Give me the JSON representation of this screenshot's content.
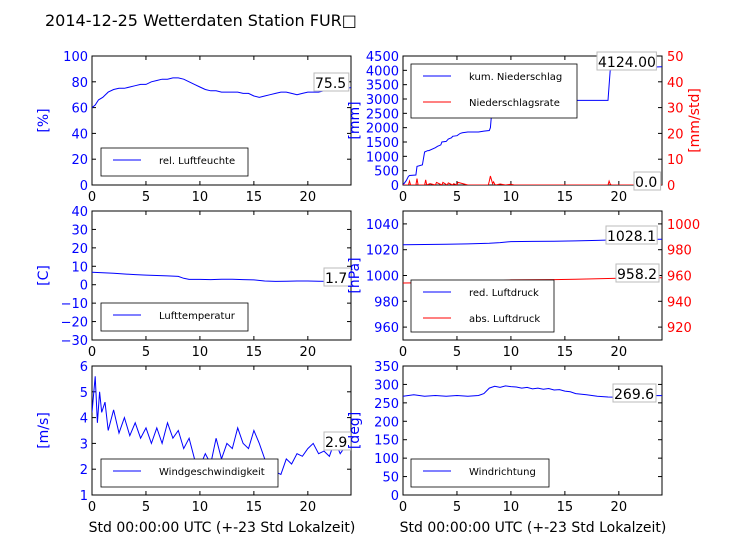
{
  "figure": {
    "title": "2014-12-25 Wetterdaten Station FUR□",
    "x_label": "Std 00:00:00 UTC (+-23 Std Lokalzeit)"
  },
  "colors": {
    "left_axis": "#0000ff",
    "right_axis": "#ff0000",
    "black": "#000000"
  },
  "chart_data": [
    {
      "type": "line",
      "ylabel": "[%]",
      "xlim": [
        0,
        24
      ],
      "ylim": [
        0,
        100
      ],
      "yticks": [
        "0",
        "20",
        "40",
        "60",
        "80",
        "100"
      ],
      "xticks": [
        "0",
        "5",
        "10",
        "15",
        "20"
      ],
      "series": [
        {
          "name": "rel. Luftfeuchte",
          "color": "#0000ff",
          "x": [
            0,
            0.3,
            0.6,
            1,
            1.5,
            2,
            2.5,
            3,
            3.5,
            4,
            4.5,
            5,
            5.5,
            6,
            6.5,
            7,
            7.5,
            8,
            8.5,
            9,
            9.5,
            10,
            10.5,
            11,
            11.5,
            12,
            12.5,
            13,
            13.5,
            14,
            14.5,
            15,
            15.5,
            16,
            16.5,
            17,
            17.5,
            18,
            18.5,
            19,
            19.5,
            20,
            20.5,
            21,
            21.5,
            22,
            22.5,
            23,
            23.5,
            24
          ],
          "y": [
            60,
            62,
            66,
            68,
            72,
            74,
            75,
            75,
            76,
            77,
            78,
            78,
            80,
            81,
            82,
            82,
            83,
            83,
            82,
            80,
            78,
            76,
            74,
            73,
            73,
            72,
            72,
            72,
            72,
            71,
            71,
            69,
            68,
            69,
            70,
            71,
            72,
            72,
            71,
            70,
            71,
            72,
            72,
            72,
            73,
            73,
            74,
            75,
            75,
            75.5
          ]
        }
      ],
      "last_value_label": "75.5"
    },
    {
      "type": "line",
      "ylabel": "[mm]",
      "ylabel_right": "[mm/std]",
      "xlim": [
        0,
        24
      ],
      "ylim": [
        0,
        4500
      ],
      "ylim_right": [
        0,
        50
      ],
      "yticks": [
        "0",
        "500",
        "1000",
        "1500",
        "2000",
        "2500",
        "3000",
        "3500",
        "4000",
        "4500"
      ],
      "yticks_right": [
        "0",
        "10",
        "20",
        "30",
        "40",
        "50"
      ],
      "xticks": [
        "0",
        "5",
        "10",
        "15",
        "20"
      ],
      "series": [
        {
          "name": "kum. Niederschlag",
          "color": "#0000ff",
          "x": [
            0,
            0.3,
            0.5,
            0.6,
            1.2,
            1.3,
            1.8,
            2.0,
            2.3,
            2.4,
            3.0,
            3.2,
            3.5,
            3.6,
            4.0,
            4.2,
            4.5,
            4.6,
            5.0,
            5.3,
            5.5,
            6.0,
            6.5,
            7.0,
            7.5,
            8.0,
            8.1,
            8.3,
            8.5,
            8.7,
            9.0,
            12,
            15,
            17,
            19,
            19.2,
            20,
            22,
            24
          ],
          "y": [
            0,
            150,
            300,
            330,
            350,
            650,
            700,
            1150,
            1200,
            1200,
            1300,
            1350,
            1400,
            1500,
            1520,
            1600,
            1650,
            1700,
            1720,
            1800,
            1820,
            1850,
            1850,
            1850,
            1880,
            1900,
            2000,
            2900,
            2950,
            2950,
            2950,
            2950,
            2950,
            2950,
            2950,
            4000,
            4050,
            4100,
            4124
          ]
        },
        {
          "name": "Niederschlagsrate",
          "color": "#ff0000",
          "axis": "right",
          "x": [
            0,
            0.5,
            0.6,
            0.7,
            1.2,
            1.3,
            1.4,
            2.0,
            2.1,
            2.2,
            2.5,
            3.0,
            3.1,
            3.6,
            3.7,
            4.1,
            4.2,
            4.6,
            4.7,
            5.0,
            5.1,
            6.0,
            7.9,
            8.0,
            8.1,
            8.2,
            8.3,
            8.4,
            8.5,
            8.6,
            9.0,
            9.5,
            10,
            10.3,
            12,
            15,
            19.0,
            19.1,
            19.2,
            19.3,
            24
          ],
          "y": [
            0,
            0,
            1.5,
            0,
            0,
            2.5,
            0,
            0,
            2,
            0,
            0.5,
            0,
            1,
            0,
            1,
            0,
            0.8,
            0,
            0.5,
            0,
            1,
            0,
            0,
            1.5,
            3.5,
            2,
            0.5,
            1.2,
            0.3,
            0,
            0.4,
            0,
            0.3,
            0,
            0,
            0,
            0,
            1.5,
            0.4,
            0,
            0
          ]
        }
      ],
      "last_value_label": "4124.00",
      "last_value_label_right": "0.0"
    },
    {
      "type": "line",
      "ylabel": "[C]",
      "xlim": [
        0,
        24
      ],
      "ylim": [
        -30,
        40
      ],
      "yticks": [
        "−30",
        "−20",
        "−10",
        "0",
        "10",
        "20",
        "30",
        "40"
      ],
      "xticks": [
        "0",
        "5",
        "10",
        "15",
        "20"
      ],
      "series": [
        {
          "name": "Lufttemperatur",
          "color": "#0000ff",
          "x": [
            0,
            1,
            2,
            3,
            4,
            5,
            6,
            7,
            8,
            8.5,
            9,
            10,
            11,
            12,
            13,
            14,
            15,
            16,
            17,
            18,
            19,
            20,
            21,
            22,
            23,
            24
          ],
          "y": [
            6.8,
            6.5,
            6.2,
            5.8,
            5.5,
            5.2,
            5.0,
            4.8,
            4.5,
            3.5,
            2.9,
            2.9,
            2.8,
            3.0,
            3.0,
            2.8,
            2.6,
            2.0,
            1.8,
            1.9,
            2.0,
            2.0,
            1.9,
            1.8,
            1.7,
            1.7
          ]
        }
      ],
      "last_value_label": "1.7"
    },
    {
      "type": "line",
      "ylabel": "[hPa]",
      "xlim": [
        0,
        24
      ],
      "ylim": [
        950,
        1050
      ],
      "ylim_right": [
        910,
        1010
      ],
      "yticks": [
        "960",
        "980",
        "1000",
        "1020",
        "1040"
      ],
      "yticks_right": [
        "920",
        "940",
        "960",
        "980",
        "1000"
      ],
      "xticks": [
        "0",
        "5",
        "10",
        "15",
        "20"
      ],
      "series": [
        {
          "name": "red. Luftdruck",
          "color": "#0000ff",
          "x": [
            0,
            2,
            4,
            6,
            8,
            9,
            10,
            12,
            14,
            16,
            18,
            20,
            22,
            24
          ],
          "y": [
            1023.8,
            1024,
            1024.2,
            1024.5,
            1025,
            1025.5,
            1026.3,
            1026.4,
            1026.5,
            1026.8,
            1027.2,
            1027.7,
            1028.0,
            1028.1
          ]
        },
        {
          "name": "abs. Luftdruck",
          "color": "#ff0000",
          "axis": "right",
          "x": [
            0,
            2,
            4,
            6,
            8,
            9,
            10,
            12,
            14,
            16,
            18,
            20,
            22,
            24
          ],
          "y": [
            954.2,
            954.4,
            954.6,
            955,
            955.5,
            956,
            956.6,
            956.7,
            956.8,
            957.1,
            957.5,
            957.9,
            958.1,
            958.2
          ]
        }
      ],
      "last_value_label": "1028.1",
      "last_value_label_right": "958.2"
    },
    {
      "type": "line",
      "ylabel": "[m/s]",
      "xlim": [
        0,
        24
      ],
      "ylim": [
        1,
        6
      ],
      "yticks": [
        "1",
        "2",
        "3",
        "4",
        "5",
        "6"
      ],
      "xticks": [
        "0",
        "5",
        "10",
        "15",
        "20"
      ],
      "series": [
        {
          "name": "Windgeschwindigkeit",
          "color": "#0000ff",
          "x": [
            0,
            0.3,
            0.5,
            0.7,
            0.9,
            1.2,
            1.5,
            2,
            2.5,
            3,
            3.5,
            4,
            4.5,
            5,
            5.5,
            6,
            6.5,
            7,
            7.5,
            8,
            8.5,
            9,
            9.5,
            10,
            10.5,
            11,
            11.5,
            12,
            12.5,
            13,
            13.5,
            14,
            14.5,
            15,
            15.5,
            16,
            16.5,
            17,
            17.5,
            18,
            18.5,
            19,
            19.5,
            20,
            20.5,
            21,
            21.5,
            22,
            22.5,
            23,
            23.5,
            24
          ],
          "y": [
            4.2,
            5.6,
            3.8,
            5.0,
            4.2,
            4.6,
            3.5,
            4.3,
            3.4,
            4.0,
            3.3,
            3.8,
            3.2,
            3.6,
            3.0,
            3.6,
            3.0,
            3.8,
            3.2,
            3.5,
            2.8,
            3.2,
            2.4,
            2.1,
            2.6,
            2.2,
            3.2,
            2.4,
            3.0,
            2.8,
            3.6,
            3.0,
            2.8,
            3.5,
            3.0,
            2.4,
            2.2,
            1.9,
            1.8,
            2.4,
            2.2,
            2.6,
            2.5,
            2.8,
            3.0,
            2.6,
            2.7,
            2.5,
            3.1,
            2.6,
            2.9,
            2.9
          ]
        }
      ],
      "last_value_label": "2.9"
    },
    {
      "type": "line",
      "ylabel": "[deg]",
      "xlim": [
        0,
        24
      ],
      "ylim": [
        0,
        350
      ],
      "yticks": [
        "0",
        "50",
        "100",
        "150",
        "200",
        "250",
        "300",
        "350"
      ],
      "xticks": [
        "0",
        "5",
        "10",
        "15",
        "20"
      ],
      "series": [
        {
          "name": "Windrichtung",
          "color": "#0000ff",
          "x": [
            0,
            1,
            2,
            3,
            4,
            5,
            6,
            7,
            7.5,
            8,
            8.5,
            9,
            9.5,
            10,
            10.5,
            11,
            11.5,
            12,
            12.5,
            13,
            13.5,
            14,
            14.5,
            15,
            15.5,
            16,
            17,
            18,
            19,
            20,
            21,
            22,
            23,
            24
          ],
          "y": [
            268,
            272,
            268,
            270,
            268,
            270,
            268,
            270,
            275,
            290,
            295,
            292,
            296,
            294,
            293,
            290,
            292,
            288,
            290,
            287,
            289,
            285,
            286,
            282,
            280,
            275,
            272,
            268,
            266,
            265,
            267,
            268,
            270,
            269.6
          ]
        }
      ],
      "last_value_label": "269.6"
    }
  ]
}
